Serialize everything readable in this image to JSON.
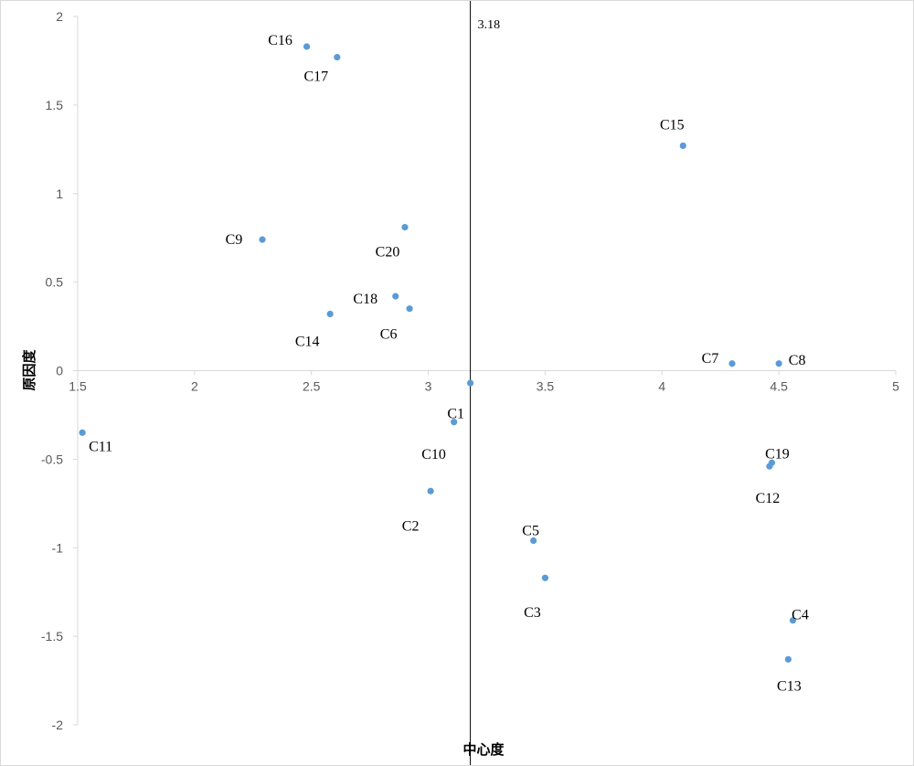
{
  "chart_data": {
    "type": "scatter",
    "xlabel": "中心度",
    "ylabel": "原因度",
    "xlim": [
      1.5,
      5
    ],
    "ylim": [
      -2,
      2
    ],
    "x_ticks": [
      "1.5",
      "2",
      "2.5",
      "3",
      "3.5",
      "4",
      "4.5",
      "5"
    ],
    "y_ticks": [
      "2",
      "1.5",
      "1",
      "0.5",
      "0",
      "-0.5",
      "-1",
      "-1.5",
      "-2"
    ],
    "reference_line": {
      "x": 3.18,
      "label": "3.18"
    },
    "marker_color": "#5b9bd5",
    "points": [
      {
        "name": "C1",
        "x": 3.11,
        "y": -0.29
      },
      {
        "name": "C2",
        "x": 3.01,
        "y": -0.68
      },
      {
        "name": "C3",
        "x": 3.5,
        "y": -1.17
      },
      {
        "name": "C4",
        "x": 4.56,
        "y": -1.41
      },
      {
        "name": "C5",
        "x": 3.45,
        "y": -0.96
      },
      {
        "name": "C6",
        "x": 2.92,
        "y": 0.35
      },
      {
        "name": "C7",
        "x": 4.3,
        "y": 0.04
      },
      {
        "name": "C8",
        "x": 4.5,
        "y": 0.04
      },
      {
        "name": "C9",
        "x": 2.29,
        "y": 0.74
      },
      {
        "name": "C10",
        "x": 3.18,
        "y": -0.07
      },
      {
        "name": "C11",
        "x": 1.52,
        "y": -0.35
      },
      {
        "name": "C12",
        "x": 4.46,
        "y": -0.54
      },
      {
        "name": "C13",
        "x": 4.54,
        "y": -1.63
      },
      {
        "name": "C14",
        "x": 2.58,
        "y": 0.32
      },
      {
        "name": "C15",
        "x": 4.09,
        "y": 1.27
      },
      {
        "name": "C16",
        "x": 2.48,
        "y": 1.83
      },
      {
        "name": "C17",
        "x": 2.61,
        "y": 1.77
      },
      {
        "name": "C18",
        "x": 2.86,
        "y": 0.42
      },
      {
        "name": "C19",
        "x": 4.47,
        "y": -0.52
      },
      {
        "name": "C20",
        "x": 2.9,
        "y": 0.81
      }
    ]
  }
}
